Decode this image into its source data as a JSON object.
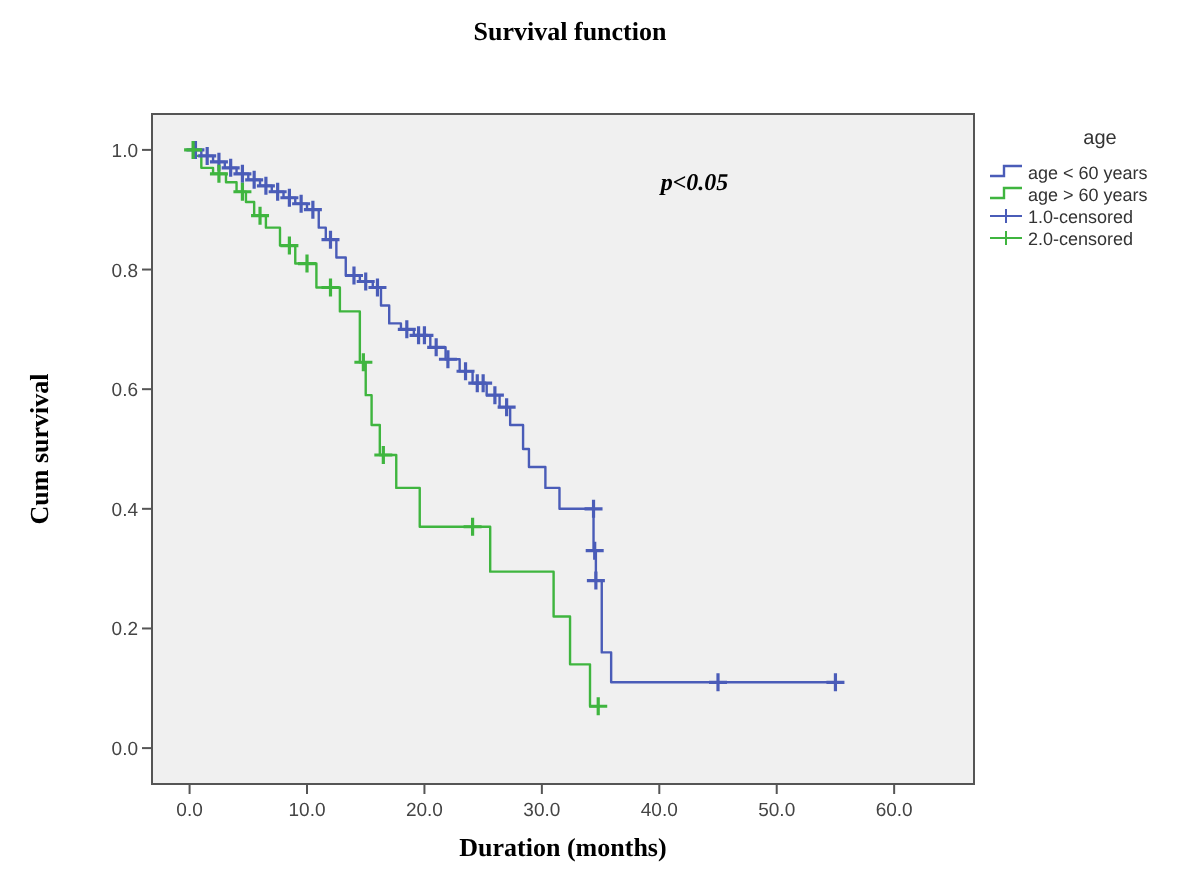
{
  "chart_data": {
    "type": "step",
    "title": "Survival function",
    "xlabel": "Duration (months)",
    "ylabel": "Cum survival",
    "legend_title": "age",
    "legend": "right",
    "line_style": "solid",
    "grid": false,
    "annotations": [
      "p<0.05"
    ],
    "xlim": [
      -3.2,
      66.8
    ],
    "ylim": [
      -0.06,
      1.06
    ],
    "xticks": [
      {
        "value": 0,
        "label": "0.0"
      },
      {
        "value": 10,
        "label": "10.0"
      },
      {
        "value": 20,
        "label": "20.0"
      },
      {
        "value": 30,
        "label": "30.0"
      },
      {
        "value": 40,
        "label": "40.0"
      },
      {
        "value": 50,
        "label": "50.0"
      },
      {
        "value": 60,
        "label": "60.0"
      }
    ],
    "yticks": [
      {
        "value": 0,
        "label": "0.0"
      },
      {
        "value": 0.2,
        "label": "0.2"
      },
      {
        "value": 0.4,
        "label": "0.4"
      },
      {
        "value": 0.6,
        "label": "0.6"
      },
      {
        "value": 0.8,
        "label": "0.8"
      },
      {
        "value": 1,
        "label": "1.0"
      }
    ],
    "series": [
      {
        "name": "age < 60 years",
        "color": "#4a5cb8",
        "x": [
          0,
          1,
          2,
          3,
          4,
          5,
          6,
          7,
          8,
          9,
          10,
          11,
          11.6,
          12.5,
          13.3,
          14.5,
          15.6,
          16.3,
          17,
          18,
          19.1,
          20.5,
          21.8,
          23,
          24.1,
          25.3,
          26.4,
          27.3,
          28.4,
          28.9,
          30.3,
          31.5,
          34.4,
          34.6,
          35.1,
          35.9,
          55
        ],
        "values": [
          1.0,
          0.99,
          0.98,
          0.97,
          0.96,
          0.95,
          0.94,
          0.93,
          0.92,
          0.91,
          0.9,
          0.87,
          0.85,
          0.82,
          0.79,
          0.78,
          0.77,
          0.74,
          0.71,
          0.7,
          0.69,
          0.67,
          0.65,
          0.63,
          0.61,
          0.59,
          0.57,
          0.54,
          0.5,
          0.47,
          0.435,
          0.4,
          0.33,
          0.28,
          0.16,
          0.11,
          0.11
        ]
      },
      {
        "name": "age > 60 years",
        "color": "#3fb53f",
        "x": [
          0,
          0.5,
          1,
          2,
          3.1,
          4,
          4.8,
          5.5,
          6.5,
          7.7,
          9,
          10.8,
          12.8,
          14.5,
          15,
          15.5,
          16.2,
          17.6,
          19.6,
          25.6,
          31,
          32.4,
          34.1,
          34.8
        ],
        "values": [
          1.0,
          0.99,
          0.97,
          0.96,
          0.946,
          0.93,
          0.913,
          0.89,
          0.87,
          0.84,
          0.81,
          0.77,
          0.73,
          0.645,
          0.59,
          0.54,
          0.49,
          0.435,
          0.37,
          0.295,
          0.22,
          0.14,
          0.07,
          0.07
        ]
      },
      {
        "name": "1.0-censored",
        "type": "scatter",
        "marker": "cross",
        "color": "#4a5cb8",
        "x": [
          0.5,
          1.5,
          2.5,
          3.5,
          4.5,
          5.5,
          6.5,
          7.5,
          8.5,
          9.5,
          10.5,
          12,
          14,
          15,
          16,
          18.5,
          19.5,
          20,
          21,
          22,
          23.5,
          24.5,
          25,
          26,
          27,
          34.4,
          34.5,
          34.6,
          45,
          55
        ],
        "values": [
          1.0,
          0.99,
          0.98,
          0.97,
          0.96,
          0.95,
          0.94,
          0.93,
          0.92,
          0.91,
          0.9,
          0.85,
          0.79,
          0.78,
          0.77,
          0.7,
          0.69,
          0.69,
          0.67,
          0.65,
          0.63,
          0.61,
          0.61,
          0.59,
          0.57,
          0.4,
          0.33,
          0.28,
          0.11,
          0.11
        ]
      },
      {
        "name": "2.0-censored",
        "type": "scatter",
        "marker": "cross",
        "color": "#3fb53f",
        "x": [
          0.3,
          2.5,
          4.5,
          6,
          8.5,
          10,
          12,
          14.8,
          16.5,
          24.1,
          34.8
        ],
        "values": [
          1.0,
          0.96,
          0.93,
          0.89,
          0.84,
          0.81,
          0.77,
          0.645,
          0.49,
          0.37,
          0.07
        ]
      }
    ]
  }
}
